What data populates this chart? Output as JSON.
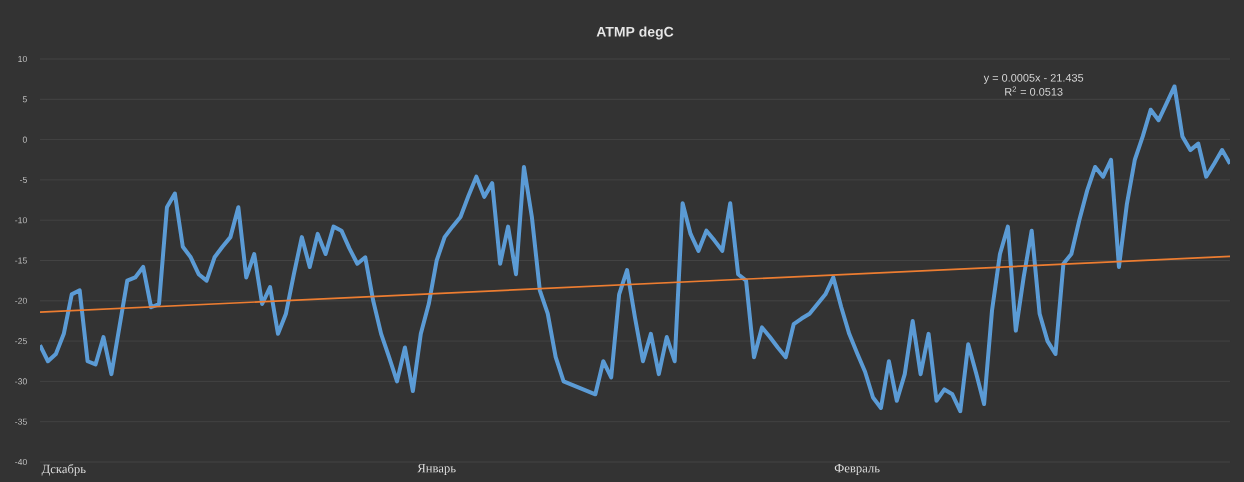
{
  "chart_data": {
    "type": "line",
    "title": "ATMP degC",
    "categories": [
      null,
      null,
      null,
      "Дскабрь",
      null,
      null,
      null,
      null,
      null,
      null,
      null,
      null,
      null,
      null,
      null,
      null,
      null,
      null,
      null,
      null,
      null,
      null,
      null,
      null,
      null,
      null,
      null,
      null,
      null,
      null,
      null,
      null,
      null,
      null,
      null,
      null,
      null,
      null,
      null,
      null,
      null,
      null,
      null,
      null,
      null,
      null,
      null,
      null,
      null,
      null,
      "Январь",
      null,
      null,
      null,
      null,
      null,
      null,
      null,
      null,
      null,
      null,
      null,
      null,
      null,
      null,
      null,
      null,
      null,
      null,
      null,
      null,
      null,
      null,
      null,
      null,
      null,
      null,
      null,
      null,
      null,
      null,
      null,
      null,
      null,
      null,
      null,
      null,
      null,
      null,
      null,
      null,
      null,
      null,
      null,
      null,
      null,
      null,
      null,
      null,
      null,
      null,
      null,
      null,
      "Февраль",
      null,
      null,
      null,
      null,
      null,
      null,
      null,
      null,
      null,
      null,
      null,
      null,
      null,
      null,
      null,
      null,
      null,
      null,
      null,
      null,
      null,
      null,
      null,
      null,
      null,
      null,
      null,
      null,
      null,
      null,
      null,
      null,
      null,
      null,
      null,
      null,
      null,
      null,
      null,
      null,
      null,
      null,
      null,
      null,
      null,
      null,
      null
    ],
    "series": [
      {
        "color": "#5b9bd5",
        "values": [
          -25.5,
          -27.5,
          -26.6,
          -24.1,
          -19.2,
          -18.7,
          -27.5,
          -27.9,
          -24.5,
          -29.1,
          -23.3,
          -17.5,
          -17.1,
          -15.8,
          -20.8,
          -20.4,
          -8.4,
          -6.7,
          -13.3,
          -14.6,
          -16.7,
          -17.5,
          -14.6,
          -13.3,
          -12.1,
          -8.4,
          -17.1,
          -14.2,
          -20.4,
          -18.3,
          -24.1,
          -21.6,
          -16.7,
          -12.1,
          -15.8,
          -11.7,
          -14.2,
          -10.8,
          -11.3,
          -13.5,
          -15.4,
          -14.6,
          -20,
          -24.1,
          -27,
          -30,
          -25.8,
          -31.2,
          -24.1,
          -20.4,
          -15,
          -12.1,
          -10.8,
          -9.6,
          -7,
          -4.6,
          -7.1,
          -5.4,
          -15.4,
          -10.8,
          -16.7,
          -3.4,
          -9.6,
          -18.7,
          -21.6,
          -27,
          -30,
          -30.4,
          -30.8,
          -31.2,
          -31.6,
          -27.5,
          -29.5,
          -19.2,
          -16.2,
          -22.1,
          -27.5,
          -24.1,
          -29.1,
          -24.5,
          -27.5,
          -7.9,
          -11.7,
          -13.8,
          -11.3,
          -12.5,
          -13.8,
          -7.9,
          -16.7,
          -17.5,
          -27,
          -23.3,
          -24.5,
          -25.8,
          -27,
          -22.9,
          -22.2,
          -21.6,
          -20.4,
          -19.2,
          -17.1,
          -20.8,
          -24.1,
          -26.5,
          -28.8,
          -32,
          -33.3,
          -27.5,
          -32.4,
          -29.1,
          -22.5,
          -29.1,
          -24.1,
          -32.4,
          -31,
          -31.6,
          -33.7,
          -25.4,
          -29,
          -32.8,
          -21.2,
          -14.2,
          -10.8,
          -23.7,
          -17,
          -11.3,
          -21.6,
          -25,
          -26.6,
          -15.4,
          -14.2,
          -10,
          -6.3,
          -3.4,
          -4.6,
          -2.5,
          -15.8,
          -8,
          -2.5,
          0.4,
          3.7,
          2.4,
          4.5,
          6.6,
          0.4,
          -1.3,
          -0.5,
          -4.6,
          -3,
          -1.3,
          -3
        ]
      },
      {
        "type": "line",
        "color": "#ed7d31",
        "values": [
          -21.4,
          null,
          null,
          null,
          null,
          null,
          null,
          null,
          null,
          null,
          null,
          null,
          null,
          null,
          null,
          null,
          null,
          null,
          null,
          null,
          null,
          null,
          null,
          null,
          null,
          null,
          null,
          null,
          null,
          null,
          null,
          null,
          null,
          null,
          null,
          null,
          null,
          null,
          null,
          null,
          null,
          null,
          null,
          null,
          null,
          null,
          null,
          null,
          null,
          null,
          null,
          null,
          null,
          null,
          null,
          null,
          null,
          null,
          null,
          null,
          null,
          null,
          null,
          null,
          null,
          null,
          null,
          null,
          null,
          null,
          null,
          null,
          null,
          null,
          null,
          null,
          null,
          null,
          null,
          null,
          null,
          null,
          null,
          null,
          null,
          null,
          null,
          null,
          null,
          null,
          null,
          null,
          null,
          null,
          null,
          null,
          null,
          null,
          null,
          null,
          null,
          null,
          null,
          null,
          null,
          null,
          null,
          null,
          null,
          null,
          null,
          null,
          null,
          null,
          null,
          null,
          null,
          null,
          null,
          null,
          null,
          null,
          null,
          null,
          null,
          null,
          null,
          null,
          null,
          null,
          null,
          null,
          null,
          null,
          null,
          null,
          null,
          null,
          null,
          null,
          null,
          null,
          null,
          null,
          null,
          null,
          null,
          null,
          null,
          null,
          -14.5
        ]
      }
    ],
    "ylim": [
      -40,
      10
    ],
    "yticks": [
      -40,
      -35,
      -30,
      -25,
      -20,
      -15,
      -10,
      -5,
      0,
      5,
      10
    ],
    "grid": "y",
    "annotations": [
      "y = 0.0005x - 21.435",
      "R$^{2}$ = 0.0513"
    ]
  }
}
